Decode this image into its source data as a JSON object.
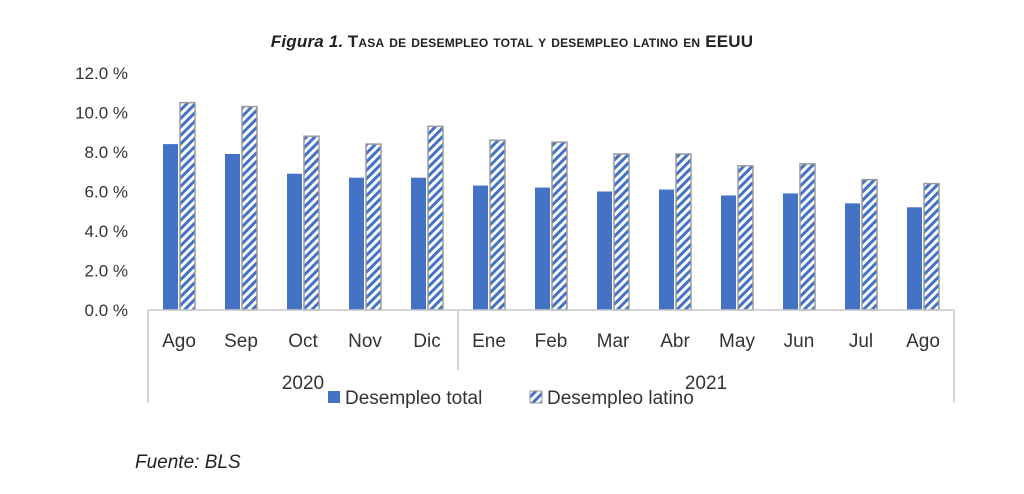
{
  "chart_data": {
    "type": "bar",
    "title_prefix": "Figura 1.",
    "title": "Tasa de desempleo total y desempleo latino en EEUU",
    "categories": [
      "Ago",
      "Sep",
      "Oct",
      "Nov",
      "Dic",
      "Ene",
      "Feb",
      "Mar",
      "Abr",
      "May",
      "Jun",
      "Jul",
      "Ago"
    ],
    "groups": [
      {
        "label": "2020",
        "start": 0,
        "end": 4
      },
      {
        "label": "2021",
        "start": 5,
        "end": 12
      }
    ],
    "series": [
      {
        "name": "Desempleo total",
        "color": "#4472C4",
        "pattern": "solid",
        "values": [
          8.4,
          7.9,
          6.9,
          6.7,
          6.7,
          6.3,
          6.2,
          6.0,
          6.1,
          5.8,
          5.9,
          5.4,
          5.2
        ]
      },
      {
        "name": "Desempleo latino",
        "color": "#4472C4",
        "pattern": "hatched",
        "values": [
          10.5,
          10.3,
          8.8,
          8.4,
          9.3,
          8.6,
          8.5,
          7.9,
          7.9,
          7.3,
          7.4,
          6.6,
          6.4
        ]
      }
    ],
    "yticks": [
      "0.0 %",
      "2.0 %",
      "4.0 %",
      "6.0 %",
      "8.0 %",
      "10.0 %",
      "12.0 %"
    ],
    "ylim": [
      0,
      12
    ],
    "legend": "bottom-center",
    "grid": false
  },
  "source": "Fuente: BLS"
}
